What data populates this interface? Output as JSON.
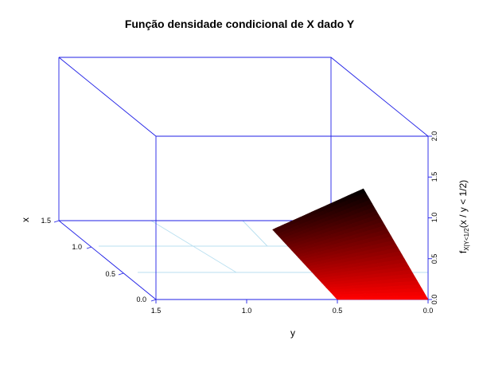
{
  "chart_data": {
    "type": "surface3d",
    "title": "Função densidade condicional de X dado Y",
    "xlabel": "y",
    "ylabel": "x",
    "zlabel_base": "f",
    "zlabel_sub": "X|Y<1/2",
    "zlabel_tail": "(x / y < 1/2)",
    "y_ticks": [
      "1.5",
      "1.0",
      "0.5",
      "0.0"
    ],
    "x_ticks": [
      "0.0",
      "0.5",
      "1.0",
      "1.5"
    ],
    "z_ticks": [
      "0.0",
      "0.5",
      "1.0",
      "1.5",
      "2.0"
    ],
    "y_range": [
      0,
      1.5
    ],
    "x_range": [
      0,
      1.5
    ],
    "z_range": [
      0,
      2.0
    ],
    "surface_y_range": [
      0,
      0.5
    ],
    "surface_x_range": [
      0,
      1.0
    ],
    "surface_z_at_corners": {
      "y0_x0": 0.0,
      "y0_x1": 2.0,
      "y05_x0": 0.0,
      "y05_x1": 1.5
    },
    "colors": {
      "box": "#1f1fe6",
      "grid": "#b8dff0",
      "low": "#ff0000",
      "high": "#000000"
    }
  }
}
